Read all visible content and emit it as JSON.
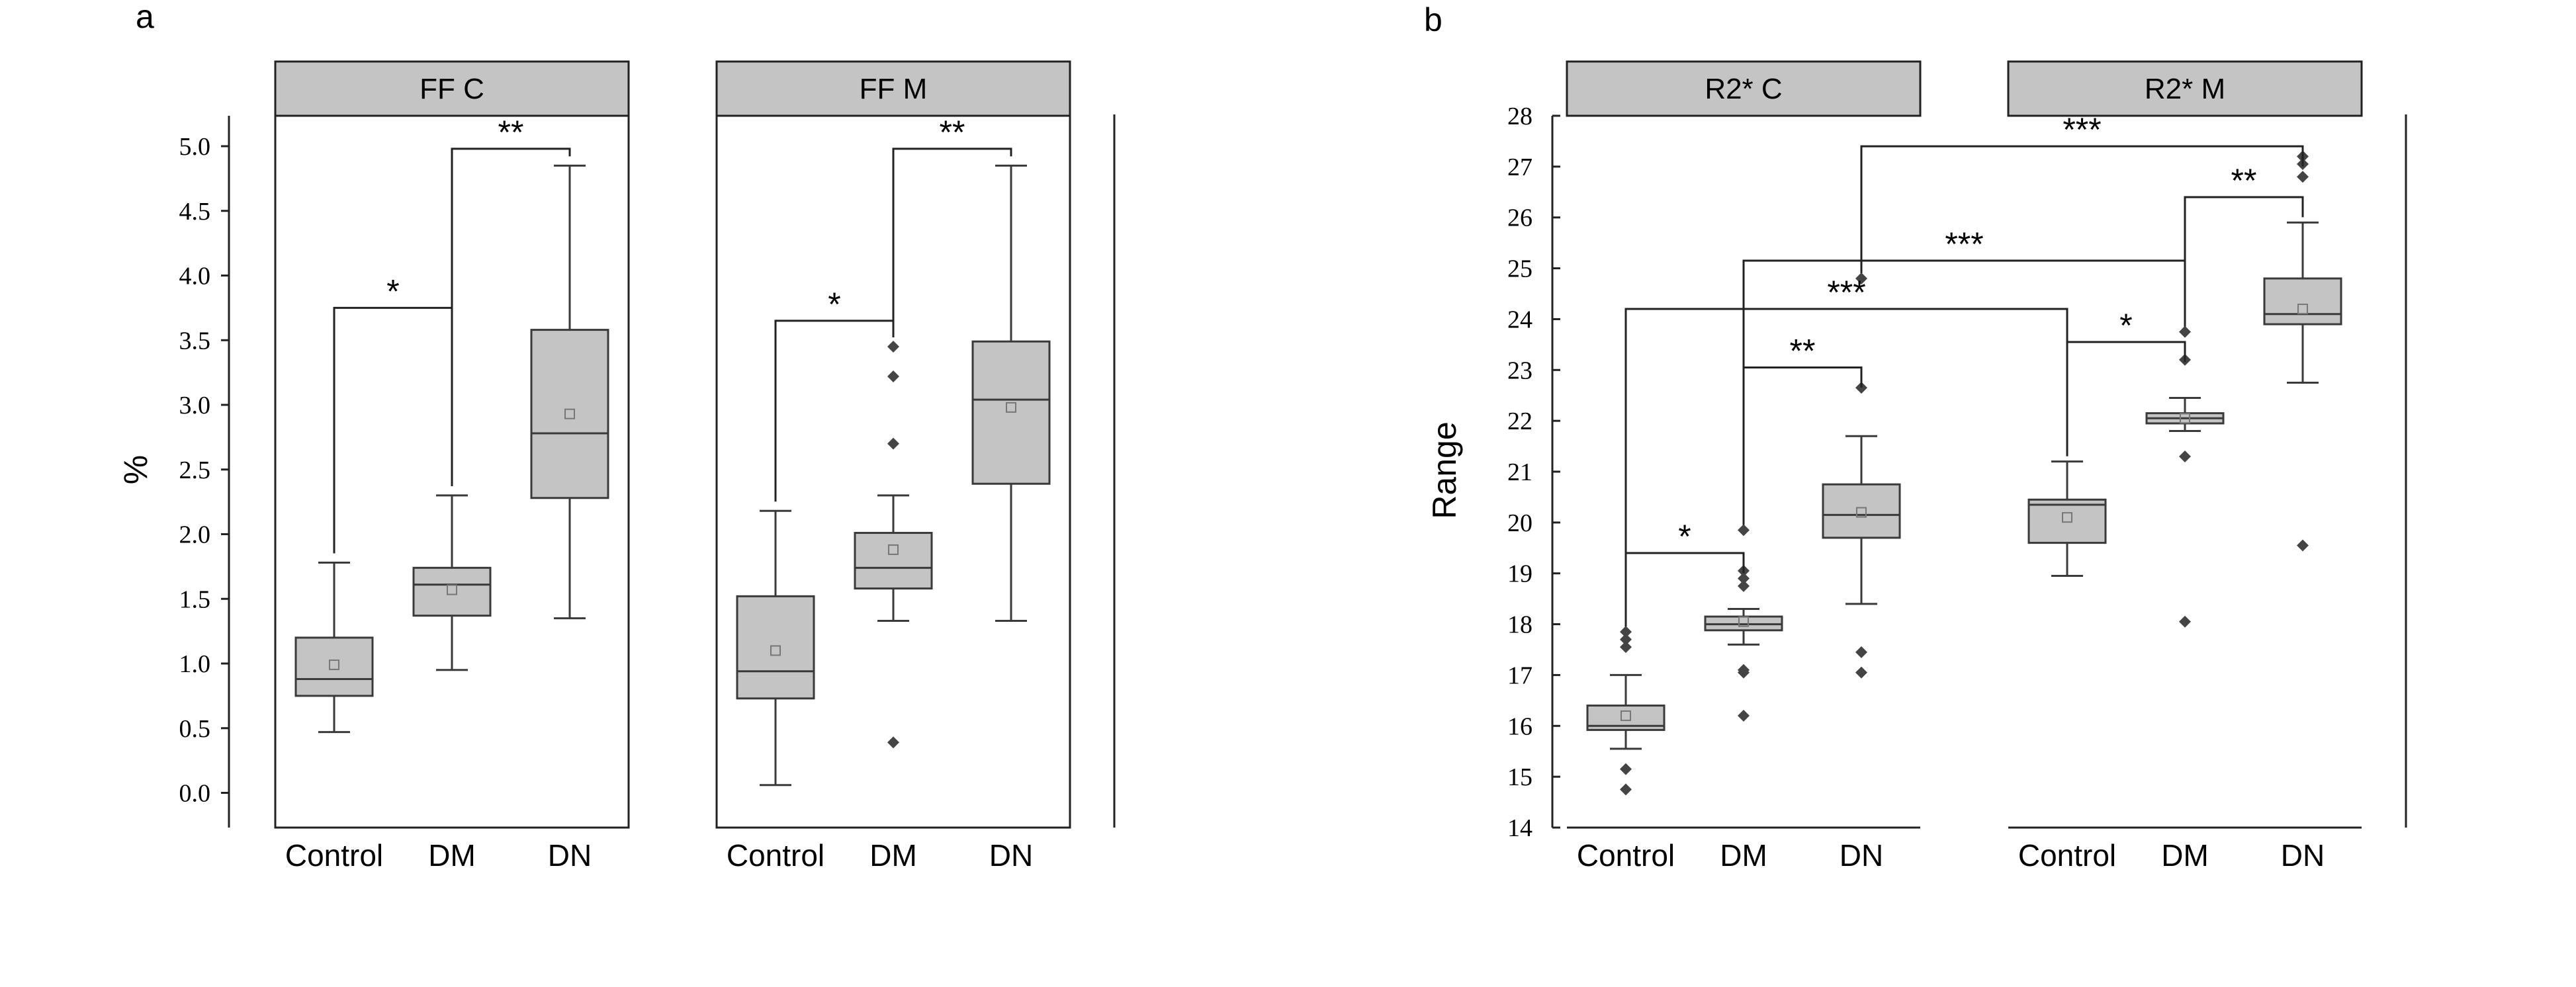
{
  "chart_data": [
    {
      "type": "box",
      "panel_label": "a",
      "ylabel": "%",
      "ylim": [
        -0.25,
        5.25
      ],
      "yticks": [
        "0.0",
        "0.5",
        "1.0",
        "1.5",
        "2.0",
        "2.5",
        "3.0",
        "3.5",
        "4.0",
        "4.5",
        "5.0"
      ],
      "facets": [
        {
          "title": "FF C",
          "categories": [
            "Control",
            "DM",
            "DN"
          ],
          "boxes": [
            {
              "category": "Control",
              "whisker_low": 0.47,
              "q1": 0.75,
              "median": 0.88,
              "q3": 1.2,
              "whisker_high": 1.78,
              "mean": 0.99,
              "outliers": []
            },
            {
              "category": "DM",
              "whisker_low": 0.95,
              "q1": 1.37,
              "median": 1.61,
              "q3": 1.74,
              "whisker_high": 2.3,
              "mean": 1.57,
              "outliers": []
            },
            {
              "category": "DN",
              "whisker_low": 1.35,
              "q1": 2.28,
              "median": 2.78,
              "q3": 3.58,
              "whisker_high": 4.85,
              "mean": 2.93,
              "outliers": []
            }
          ],
          "significance": [
            {
              "from": "Control",
              "to": "DM",
              "label": "*",
              "level": 3.75
            },
            {
              "from": "DM",
              "to": "DN",
              "label": "**",
              "level": 4.98
            }
          ]
        },
        {
          "title": "FF M",
          "categories": [
            "Control",
            "DM",
            "DN"
          ],
          "boxes": [
            {
              "category": "Control",
              "whisker_low": 0.06,
              "q1": 0.73,
              "median": 0.94,
              "q3": 1.52,
              "whisker_high": 2.18,
              "mean": 1.1,
              "outliers": []
            },
            {
              "category": "DM",
              "whisker_low": 1.33,
              "q1": 1.58,
              "median": 1.74,
              "q3": 2.01,
              "whisker_high": 2.3,
              "mean": 1.88,
              "outliers": [
                0.39,
                2.7,
                3.22,
                3.45
              ]
            },
            {
              "category": "DN",
              "whisker_low": 1.33,
              "q1": 2.39,
              "median": 3.04,
              "q3": 3.49,
              "whisker_high": 4.85,
              "mean": 2.98,
              "outliers": []
            }
          ],
          "significance": [
            {
              "from": "Control",
              "to": "DM",
              "label": "*",
              "level": 3.65
            },
            {
              "from": "DM",
              "to": "DN",
              "label": "**",
              "level": 4.98
            }
          ]
        }
      ]
    },
    {
      "type": "box",
      "panel_label": "b",
      "ylabel": "Range",
      "ylim": [
        14,
        28
      ],
      "yticks": [
        "14",
        "15",
        "16",
        "17",
        "18",
        "19",
        "20",
        "21",
        "22",
        "23",
        "24",
        "25",
        "26",
        "27",
        "28"
      ],
      "facets": [
        {
          "title": "R2* C",
          "categories": [
            "Control",
            "DM",
            "DN"
          ],
          "boxes": [
            {
              "category": "Control",
              "whisker_low": 15.55,
              "q1": 15.92,
              "median": 16.0,
              "q3": 16.4,
              "whisker_high": 17.0,
              "mean": 16.2,
              "outliers": [
                14.75,
                15.15,
                17.55,
                17.7,
                17.85
              ]
            },
            {
              "category": "DM",
              "whisker_low": 17.6,
              "q1": 17.88,
              "median": 18.0,
              "q3": 18.15,
              "whisker_high": 18.3,
              "mean": 18.05,
              "outliers": [
                16.2,
                17.05,
                17.1,
                18.75,
                18.9,
                19.05,
                19.85
              ]
            },
            {
              "category": "DN",
              "whisker_low": 18.4,
              "q1": 19.7,
              "median": 20.15,
              "q3": 20.75,
              "whisker_high": 21.7,
              "mean": 20.2,
              "outliers": [
                17.05,
                17.45,
                22.65,
                24.8
              ]
            }
          ]
        },
        {
          "title": "R2* M",
          "categories": [
            "Control",
            "DM",
            "DN"
          ],
          "boxes": [
            {
              "category": "Control",
              "whisker_low": 18.95,
              "q1": 19.6,
              "median": 20.35,
              "q3": 20.45,
              "whisker_high": 21.2,
              "mean": 20.1,
              "outliers": []
            },
            {
              "category": "DM",
              "whisker_low": 21.8,
              "q1": 21.95,
              "median": 22.05,
              "q3": 22.15,
              "whisker_high": 22.45,
              "mean": 22.05,
              "outliers": [
                18.05,
                21.3,
                23.2,
                23.75
              ]
            },
            {
              "category": "DN",
              "whisker_low": 22.75,
              "q1": 23.9,
              "median": 24.1,
              "q3": 24.8,
              "whisker_high": 25.9,
              "mean": 24.2,
              "outliers": [
                19.55,
                26.8,
                27.05,
                27.2
              ]
            }
          ]
        }
      ],
      "significance": [
        {
          "from": "R2* C/Control",
          "to": "R2* C/DM",
          "label": "*",
          "level": 19.4
        },
        {
          "from": "R2* C/DM",
          "to": "R2* C/DN",
          "label": "**",
          "level": 23.05
        },
        {
          "from": "R2* M/Control",
          "to": "R2* M/DM",
          "label": "*",
          "level": 23.55
        },
        {
          "from": "R2* C/Control",
          "to": "R2* M/Control",
          "label": "***",
          "level": 24.2
        },
        {
          "from": "R2* C/DM",
          "to": "R2* M/DM",
          "label": "***",
          "level": 25.15
        },
        {
          "from": "R2* M/DM",
          "to": "R2* M/DN",
          "label": "**",
          "level": 26.4
        },
        {
          "from": "R2* C/DN",
          "to": "R2* M/DN",
          "label": "***",
          "level": 27.4
        }
      ]
    }
  ],
  "colors": {
    "box_fill": "#c4c4c4",
    "strip_fill": "#c4c4c4",
    "line": "#3a3a3a",
    "outlier": "#444444",
    "mean_marker": "#777777"
  }
}
